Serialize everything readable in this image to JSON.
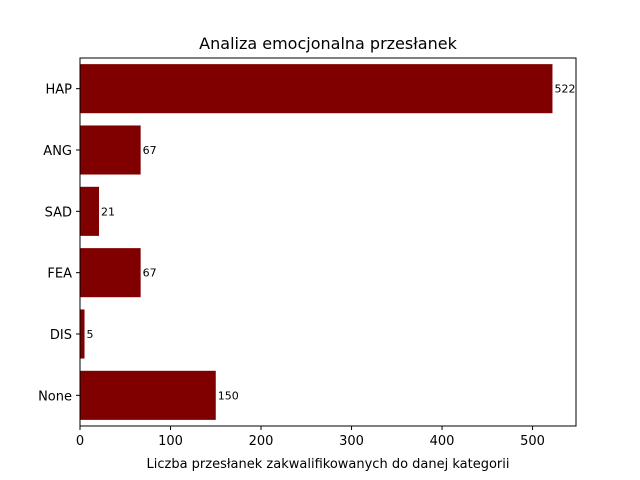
{
  "chart_data": {
    "type": "bar",
    "orientation": "horizontal",
    "title": "Analiza emocjonalna przesłanek",
    "xlabel": "Liczba przesłanek zakwalifikowanych do danej kategorii",
    "ylabel": "",
    "categories": [
      "HAP",
      "ANG",
      "SAD",
      "FEA",
      "DIS",
      "None"
    ],
    "values": [
      522,
      67,
      21,
      67,
      5,
      150
    ],
    "value_labels": [
      "522",
      "67",
      "21",
      "67",
      "5",
      "150"
    ],
    "xlim": [
      0,
      548
    ],
    "xticks": [
      0,
      100,
      200,
      300,
      400,
      500
    ],
    "xtick_labels": [
      "0",
      "100",
      "200",
      "300",
      "400",
      "500"
    ],
    "grid": false,
    "legend": "none",
    "bar_color": "#800000"
  }
}
